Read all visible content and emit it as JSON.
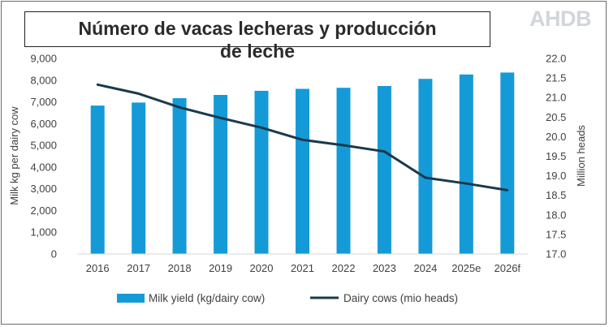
{
  "header": {
    "title_line_1": "Número de vacas lecheras y producción",
    "title_line_2": "de leche",
    "logo_text": "AHDB"
  },
  "colors": {
    "bar": "#159ad8",
    "line": "#1b3a4b",
    "text": "#404040",
    "grid": "#d9d9d9"
  },
  "chart_data": {
    "type": "bar+line",
    "categories": [
      "2016",
      "2017",
      "2018",
      "2019",
      "2020",
      "2021",
      "2022",
      "2023",
      "2024",
      "2025e",
      "2026f"
    ],
    "series": [
      {
        "name": "Milk yield (kg/dairy cow)",
        "type": "bar",
        "axis": "left",
        "values": [
          6830,
          6970,
          7170,
          7320,
          7510,
          7600,
          7650,
          7730,
          8060,
          8260,
          8350
        ]
      },
      {
        "name": "Dairy cows (mio heads)",
        "type": "line",
        "axis": "right",
        "values": [
          21.33,
          21.1,
          20.75,
          20.48,
          20.23,
          19.92,
          19.78,
          19.62,
          18.95,
          18.8,
          18.63
        ]
      }
    ],
    "ylabel": "Milk kg per dairy cow",
    "y2label": "Million heads",
    "ylim": [
      0,
      9000
    ],
    "y2lim": [
      17.0,
      22.0
    ],
    "yticks": [
      "0",
      "1,000",
      "2,000",
      "3,000",
      "4,000",
      "5,000",
      "6,000",
      "7,000",
      "8,000",
      "9,000"
    ],
    "y2ticks": [
      "17.0",
      "17.5",
      "18.0",
      "18.5",
      "19.0",
      "19.5",
      "20.0",
      "20.5",
      "21.0",
      "21.5",
      "22.0"
    ],
    "grid": false,
    "legend_position": "bottom"
  }
}
